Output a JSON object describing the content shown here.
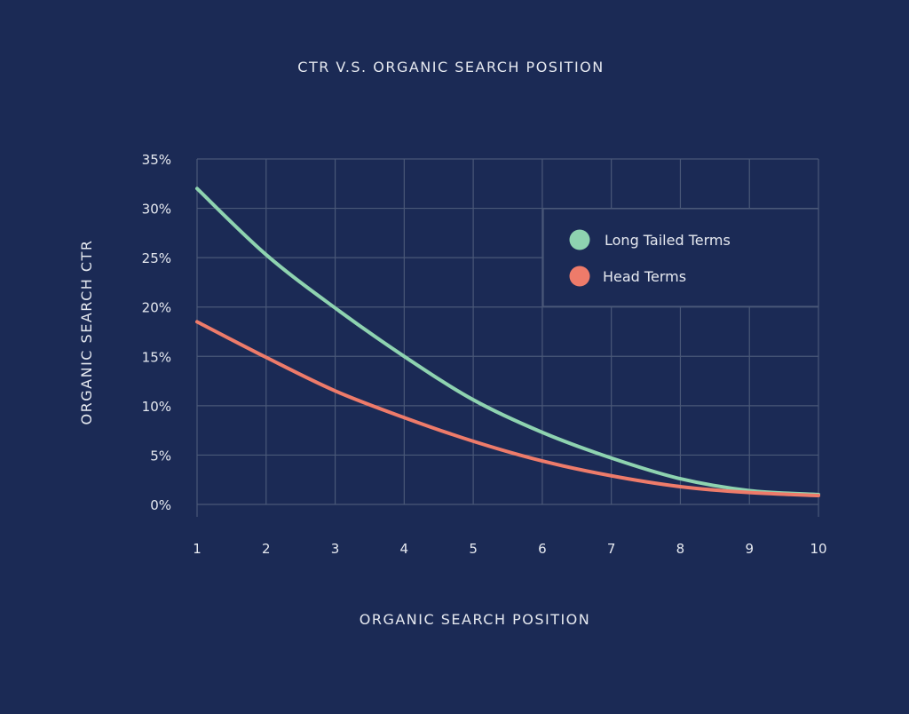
{
  "chart_data": {
    "type": "line",
    "title": "CTR V.S. ORGANIC SEARCH POSITION",
    "xlabel": "ORGANIC SEARCH POSITION",
    "ylabel": "ORGANIC SEARCH CTR",
    "x": [
      1,
      2,
      3,
      4,
      5,
      6,
      7,
      8,
      9,
      10
    ],
    "xlim": [
      1,
      10
    ],
    "ylim": [
      0,
      35
    ],
    "x_ticks": [
      "1",
      "2",
      "3",
      "4",
      "5",
      "6",
      "7",
      "8",
      "9",
      "10"
    ],
    "y_ticks": [
      "0%",
      "5%",
      "10%",
      "15%",
      "20%",
      "25%",
      "30%",
      "35%"
    ],
    "grid": true,
    "legend_position": "top-right",
    "series": [
      {
        "name": "Long Tailed Terms",
        "color": "#8ed3b0",
        "values": [
          32.0,
          25.3,
          19.9,
          15.0,
          10.6,
          7.3,
          4.7,
          2.6,
          1.4,
          1.0
        ]
      },
      {
        "name": "Head Terms",
        "color": "#ee7b6a",
        "values": [
          18.5,
          14.9,
          11.5,
          8.8,
          6.4,
          4.4,
          2.9,
          1.8,
          1.2,
          0.9
        ]
      }
    ],
    "colors": {
      "background": "#1b2a55",
      "grid": "#4a5878",
      "text": "#e6e9f0"
    }
  }
}
